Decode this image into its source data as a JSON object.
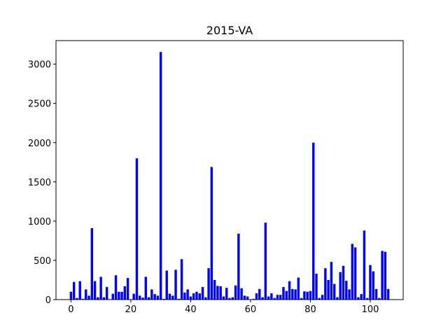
{
  "chart_data": {
    "type": "bar",
    "title": "2015-VA",
    "xlabel": "",
    "ylabel": "",
    "xlim": [
      -5,
      111
    ],
    "ylim": [
      0,
      3300
    ],
    "xticks": [
      0,
      20,
      40,
      60,
      80,
      100
    ],
    "yticks": [
      0,
      500,
      1000,
      1500,
      2000,
      2500,
      3000
    ],
    "bar_color": "#0000ff",
    "grid": false,
    "x": [
      0,
      1,
      2,
      3,
      4,
      5,
      6,
      7,
      8,
      9,
      10,
      11,
      12,
      13,
      14,
      15,
      16,
      17,
      18,
      19,
      20,
      21,
      22,
      23,
      24,
      25,
      26,
      27,
      28,
      29,
      30,
      31,
      32,
      33,
      34,
      35,
      36,
      37,
      38,
      39,
      40,
      41,
      42,
      43,
      44,
      45,
      46,
      47,
      48,
      49,
      50,
      51,
      52,
      53,
      54,
      55,
      56,
      57,
      58,
      59,
      60,
      61,
      62,
      63,
      64,
      65,
      66,
      67,
      68,
      69,
      70,
      71,
      72,
      73,
      74,
      75,
      76,
      77,
      78,
      79,
      80,
      81,
      82,
      83,
      84,
      85,
      86,
      87,
      88,
      89,
      90,
      91,
      92,
      93,
      94,
      95,
      96,
      97,
      98,
      99,
      100,
      101,
      102,
      103,
      104,
      105,
      106
    ],
    "values": [
      100,
      225,
      20,
      235,
      10,
      130,
      50,
      910,
      235,
      30,
      290,
      30,
      160,
      5,
      75,
      310,
      100,
      100,
      170,
      275,
      0,
      75,
      1800,
      50,
      25,
      290,
      30,
      130,
      70,
      50,
      3155,
      10,
      370,
      75,
      50,
      380,
      10,
      515,
      90,
      130,
      40,
      80,
      100,
      80,
      160,
      30,
      400,
      1690,
      250,
      175,
      170,
      40,
      150,
      20,
      30,
      180,
      840,
      145,
      50,
      40,
      0,
      10,
      80,
      135,
      30,
      980,
      40,
      80,
      20,
      60,
      60,
      160,
      110,
      235,
      135,
      130,
      280,
      20,
      105,
      100,
      110,
      2000,
      330,
      20,
      60,
      400,
      250,
      480,
      200,
      30,
      350,
      430,
      240,
      130,
      710,
      665,
      30,
      70,
      880,
      20,
      440,
      360,
      135,
      20,
      620,
      610,
      135
    ]
  }
}
